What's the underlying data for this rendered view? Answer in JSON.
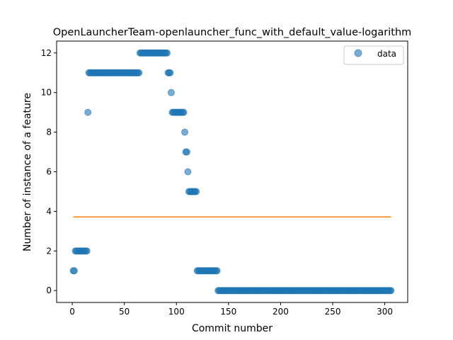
{
  "chart_data": {
    "type": "scatter",
    "title": "OpenLauncherTeam-openlauncher_func_with_default_value-logarithm",
    "xlabel": "Commit number",
    "ylabel": "Number of instance of a feature",
    "xlim": [
      -15,
      322
    ],
    "ylim": [
      -0.6,
      12.6
    ],
    "xticks": [
      0,
      50,
      100,
      150,
      200,
      250,
      300
    ],
    "yticks": [
      0,
      2,
      4,
      6,
      8,
      10,
      12
    ],
    "grid": false,
    "legend": {
      "position": "top-right",
      "entries": [
        "data"
      ]
    },
    "series": [
      {
        "name": "data",
        "kind": "points",
        "color": "#1f77b4",
        "opacity": 0.6,
        "segments": [
          {
            "x_start": 1,
            "x_end": 2,
            "y": 1
          },
          {
            "x_start": 3,
            "x_end": 14,
            "y": 2
          },
          {
            "x_start": 15,
            "x_end": 15,
            "y": 9
          },
          {
            "x_start": 16,
            "x_end": 64,
            "y": 11
          },
          {
            "x_start": 65,
            "x_end": 91,
            "y": 12
          },
          {
            "x_start": 92,
            "x_end": 94,
            "y": 11
          },
          {
            "x_start": 95,
            "x_end": 95,
            "y": 10
          },
          {
            "x_start": 96,
            "x_end": 107,
            "y": 9
          },
          {
            "x_start": 108,
            "x_end": 108,
            "y": 8
          },
          {
            "x_start": 109,
            "x_end": 110,
            "y": 7
          },
          {
            "x_start": 111,
            "x_end": 111,
            "y": 6
          },
          {
            "x_start": 112,
            "x_end": 119,
            "y": 5
          },
          {
            "x_start": 120,
            "x_end": 139,
            "y": 1
          },
          {
            "x_start": 140,
            "x_end": 306,
            "y": 0
          }
        ]
      },
      {
        "kind": "line",
        "color": "#ff7f0e",
        "x": [
          1,
          306
        ],
        "y": [
          3.72,
          3.72
        ]
      }
    ]
  }
}
